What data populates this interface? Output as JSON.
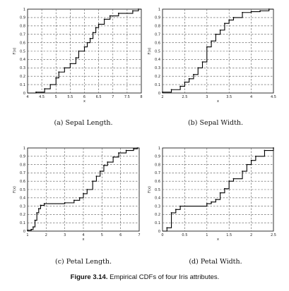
{
  "figure": {
    "caption_label": "Figure 3.14.",
    "caption_text": "Empirical CDFs of four Iris attributes."
  },
  "chart_data": [
    {
      "type": "line",
      "subcaption": "(a) Sepal Length.",
      "xlabel": "x",
      "ylabel": "F(x)",
      "xlim": [
        4,
        8
      ],
      "ylim": [
        0,
        1
      ],
      "xticks": [
        "4",
        "4.5",
        "5",
        "5.5",
        "6",
        "6.5",
        "7",
        "7.5",
        "8"
      ],
      "yticks": [
        "0",
        "0.1",
        "0.2",
        "0.3",
        "0.4",
        "0.5",
        "0.6",
        "0.7",
        "0.8",
        "0.9",
        "1"
      ],
      "grid": true,
      "x": [
        4.3,
        4.6,
        4.8,
        5.0,
        5.1,
        5.3,
        5.5,
        5.7,
        5.8,
        6.0,
        6.1,
        6.2,
        6.3,
        6.4,
        6.5,
        6.7,
        6.9,
        7.2,
        7.7,
        7.9
      ],
      "y": [
        0.01,
        0.05,
        0.1,
        0.18,
        0.25,
        0.3,
        0.35,
        0.42,
        0.5,
        0.55,
        0.6,
        0.65,
        0.72,
        0.78,
        0.82,
        0.88,
        0.92,
        0.95,
        0.98,
        1.0
      ]
    },
    {
      "type": "line",
      "subcaption": "(b) Sepal Width.",
      "xlabel": "x",
      "ylabel": "F(x)",
      "xlim": [
        2,
        4.5
      ],
      "ylim": [
        0,
        1
      ],
      "xticks": [
        "2",
        "2.5",
        "3",
        "3.5",
        "4",
        "4.5"
      ],
      "yticks": [
        "0",
        "0.1",
        "0.2",
        "0.3",
        "0.4",
        "0.5",
        "0.6",
        "0.7",
        "0.8",
        "0.9",
        "1"
      ],
      "grid": true,
      "x": [
        2.0,
        2.2,
        2.4,
        2.5,
        2.6,
        2.7,
        2.8,
        2.9,
        3.0,
        3.1,
        3.2,
        3.3,
        3.4,
        3.5,
        3.6,
        3.8,
        4.0,
        4.2,
        4.4
      ],
      "y": [
        0.01,
        0.04,
        0.08,
        0.13,
        0.17,
        0.22,
        0.3,
        0.37,
        0.55,
        0.62,
        0.7,
        0.75,
        0.83,
        0.87,
        0.9,
        0.96,
        0.97,
        0.98,
        1.0
      ]
    },
    {
      "type": "line",
      "subcaption": "(c) Petal Length.",
      "xlabel": "x",
      "ylabel": "F(x)",
      "xlim": [
        1,
        7
      ],
      "ylim": [
        0,
        1
      ],
      "xticks": [
        "1",
        "2",
        "3",
        "4",
        "5",
        "6",
        "7"
      ],
      "yticks": [
        "0",
        "0.1",
        "0.2",
        "0.3",
        "0.4",
        "0.5",
        "0.6",
        "0.7",
        "0.8",
        "0.9",
        "1"
      ],
      "grid": true,
      "x": [
        1.0,
        1.2,
        1.3,
        1.4,
        1.5,
        1.6,
        1.7,
        1.9,
        3.0,
        3.5,
        3.8,
        4.0,
        4.2,
        4.5,
        4.7,
        4.9,
        5.1,
        5.3,
        5.6,
        5.9,
        6.3,
        6.7,
        6.9
      ],
      "y": [
        0.01,
        0.02,
        0.05,
        0.13,
        0.22,
        0.27,
        0.31,
        0.33,
        0.34,
        0.37,
        0.4,
        0.45,
        0.5,
        0.6,
        0.66,
        0.72,
        0.79,
        0.83,
        0.89,
        0.94,
        0.97,
        0.99,
        1.0
      ]
    },
    {
      "type": "line",
      "subcaption": "(d) Petal Width.",
      "xlabel": "x",
      "ylabel": "F(x)",
      "xlim": [
        0,
        2.5
      ],
      "ylim": [
        0,
        1
      ],
      "xticks": [
        "0",
        "0.5",
        "1",
        "1.5",
        "2",
        "2.5"
      ],
      "yticks": [
        "0",
        "0.1",
        "0.2",
        "0.3",
        "0.4",
        "0.5",
        "0.6",
        "0.7",
        "0.8",
        "0.9",
        "1"
      ],
      "grid": true,
      "x": [
        0.1,
        0.2,
        0.3,
        0.4,
        1.0,
        1.1,
        1.2,
        1.3,
        1.4,
        1.5,
        1.6,
        1.8,
        1.9,
        2.0,
        2.1,
        2.3,
        2.5
      ],
      "y": [
        0.04,
        0.22,
        0.26,
        0.3,
        0.33,
        0.35,
        0.38,
        0.46,
        0.51,
        0.6,
        0.63,
        0.72,
        0.8,
        0.85,
        0.9,
        0.97,
        1.0
      ]
    }
  ]
}
